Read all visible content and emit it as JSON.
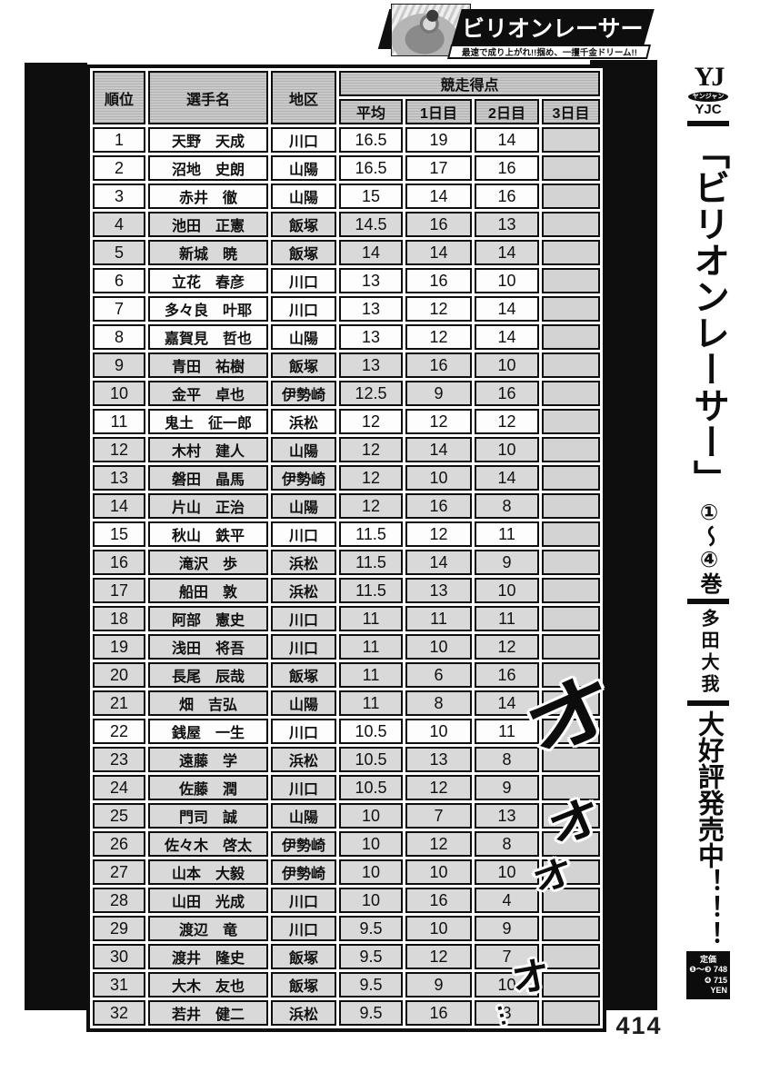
{
  "page_number": "414",
  "banner": {
    "title": "ビリオンレーサー",
    "tagline": "最速で成り上がれ!!掴め、一攫千金ドリーム!!"
  },
  "sidebar": {
    "logo_top": "YJ",
    "logo_oval": "ヤンジャン",
    "logo_bottom": "YJC",
    "series_title": "「ビリオンレーサー」",
    "volumes": "①〜④巻",
    "author": "多田大我",
    "promo": "大好評発売中！！！",
    "price_box": {
      "label": "定価",
      "line1": "❶〜❸ 748",
      "line2": "❹ 715",
      "currency": "YEN"
    }
  },
  "sound_effects": {
    "sfx1": "オ",
    "sfx2": "オ",
    "sfx3": "オ",
    "sfx4": "オ",
    "trail_dots": "…"
  },
  "table": {
    "headers": {
      "rank": "順位",
      "name": "選手名",
      "district": "地区",
      "points_group": "競走得点",
      "avg": "平均",
      "day1": "1日目",
      "day2": "2日目",
      "day3": "3日目"
    },
    "rows": [
      {
        "rank": "1",
        "name": "天野　天成",
        "district": "川口",
        "avg": "16.5",
        "day1": "19",
        "day2": "14",
        "day3": "",
        "shade": "white"
      },
      {
        "rank": "2",
        "name": "沼地　史朗",
        "district": "山陽",
        "avg": "16.5",
        "day1": "17",
        "day2": "16",
        "day3": "",
        "shade": "white"
      },
      {
        "rank": "3",
        "name": "赤井　徹",
        "district": "山陽",
        "avg": "15",
        "day1": "14",
        "day2": "16",
        "day3": "",
        "shade": "white"
      },
      {
        "rank": "4",
        "name": "池田　正憲",
        "district": "飯塚",
        "avg": "14.5",
        "day1": "16",
        "day2": "13",
        "day3": "",
        "shade": "gray"
      },
      {
        "rank": "5",
        "name": "新城　暁",
        "district": "飯塚",
        "avg": "14",
        "day1": "14",
        "day2": "14",
        "day3": "",
        "shade": "gray"
      },
      {
        "rank": "6",
        "name": "立花　春彦",
        "district": "川口",
        "avg": "13",
        "day1": "16",
        "day2": "10",
        "day3": "",
        "shade": "white"
      },
      {
        "rank": "7",
        "name": "多々良　叶耶",
        "district": "川口",
        "avg": "13",
        "day1": "12",
        "day2": "14",
        "day3": "",
        "shade": "white"
      },
      {
        "rank": "8",
        "name": "嘉賀見　哲也",
        "district": "山陽",
        "avg": "13",
        "day1": "12",
        "day2": "14",
        "day3": "",
        "shade": "white"
      },
      {
        "rank": "9",
        "name": "青田　祐樹",
        "district": "飯塚",
        "avg": "13",
        "day1": "16",
        "day2": "10",
        "day3": "",
        "shade": "gray"
      },
      {
        "rank": "10",
        "name": "金平　卓也",
        "district": "伊勢崎",
        "avg": "12.5",
        "day1": "9",
        "day2": "16",
        "day3": "",
        "shade": "gray"
      },
      {
        "rank": "11",
        "name": "鬼土　征一郎",
        "district": "浜松",
        "avg": "12",
        "day1": "12",
        "day2": "12",
        "day3": "",
        "shade": "white"
      },
      {
        "rank": "12",
        "name": "木村　建人",
        "district": "山陽",
        "avg": "12",
        "day1": "14",
        "day2": "10",
        "day3": "",
        "shade": "gray"
      },
      {
        "rank": "13",
        "name": "磐田　晶馬",
        "district": "伊勢崎",
        "avg": "12",
        "day1": "10",
        "day2": "14",
        "day3": "",
        "shade": "gray"
      },
      {
        "rank": "14",
        "name": "片山　正治",
        "district": "山陽",
        "avg": "12",
        "day1": "16",
        "day2": "8",
        "day3": "",
        "shade": "gray"
      },
      {
        "rank": "15",
        "name": "秋山　鉄平",
        "district": "川口",
        "avg": "11.5",
        "day1": "12",
        "day2": "11",
        "day3": "",
        "shade": "white"
      },
      {
        "rank": "16",
        "name": "滝沢　歩",
        "district": "浜松",
        "avg": "11.5",
        "day1": "14",
        "day2": "9",
        "day3": "",
        "shade": "gray"
      },
      {
        "rank": "17",
        "name": "船田　敦",
        "district": "浜松",
        "avg": "11.5",
        "day1": "13",
        "day2": "10",
        "day3": "",
        "shade": "gray"
      },
      {
        "rank": "18",
        "name": "阿部　憲史",
        "district": "川口",
        "avg": "11",
        "day1": "11",
        "day2": "11",
        "day3": "",
        "shade": "gray"
      },
      {
        "rank": "19",
        "name": "浅田　将吾",
        "district": "川口",
        "avg": "11",
        "day1": "10",
        "day2": "12",
        "day3": "",
        "shade": "gray"
      },
      {
        "rank": "20",
        "name": "長尾　辰哉",
        "district": "飯塚",
        "avg": "11",
        "day1": "6",
        "day2": "16",
        "day3": "",
        "shade": "gray"
      },
      {
        "rank": "21",
        "name": "畑　吉弘",
        "district": "山陽",
        "avg": "11",
        "day1": "8",
        "day2": "14",
        "day3": "",
        "shade": "gray"
      },
      {
        "rank": "22",
        "name": "銭屋　一生",
        "district": "川口",
        "avg": "10.5",
        "day1": "10",
        "day2": "11",
        "day3": "",
        "shade": "white"
      },
      {
        "rank": "23",
        "name": "遠藤　学",
        "district": "浜松",
        "avg": "10.5",
        "day1": "13",
        "day2": "8",
        "day3": "",
        "shade": "gray"
      },
      {
        "rank": "24",
        "name": "佐藤　潤",
        "district": "川口",
        "avg": "10.5",
        "day1": "12",
        "day2": "9",
        "day3": "",
        "shade": "gray"
      },
      {
        "rank": "25",
        "name": "門司　誠",
        "district": "山陽",
        "avg": "10",
        "day1": "7",
        "day2": "13",
        "day3": "",
        "shade": "gray"
      },
      {
        "rank": "26",
        "name": "佐々木　啓太",
        "district": "伊勢崎",
        "avg": "10",
        "day1": "12",
        "day2": "8",
        "day3": "",
        "shade": "gray"
      },
      {
        "rank": "27",
        "name": "山本　大毅",
        "district": "伊勢崎",
        "avg": "10",
        "day1": "10",
        "day2": "10",
        "day3": "",
        "shade": "gray"
      },
      {
        "rank": "28",
        "name": "山田　光成",
        "district": "川口",
        "avg": "10",
        "day1": "16",
        "day2": "4",
        "day3": "",
        "shade": "gray"
      },
      {
        "rank": "29",
        "name": "渡辺　竜",
        "district": "川口",
        "avg": "9.5",
        "day1": "10",
        "day2": "9",
        "day3": "",
        "shade": "gray"
      },
      {
        "rank": "30",
        "name": "渡井　隆史",
        "district": "飯塚",
        "avg": "9.5",
        "day1": "12",
        "day2": "7",
        "day3": "",
        "shade": "gray"
      },
      {
        "rank": "31",
        "name": "大木　友也",
        "district": "飯塚",
        "avg": "9.5",
        "day1": "9",
        "day2": "10",
        "day3": "",
        "shade": "gray"
      },
      {
        "rank": "32",
        "name": "若井　健二",
        "district": "浜松",
        "avg": "9.5",
        "day1": "16",
        "day2": "3",
        "day3": "",
        "shade": "gray"
      }
    ]
  },
  "colors": {
    "panel_black": "#0e0e0e",
    "row_gray": "#d9d9d9",
    "row_white": "#fdfdfd",
    "header_gray": "#bdbdbd"
  }
}
